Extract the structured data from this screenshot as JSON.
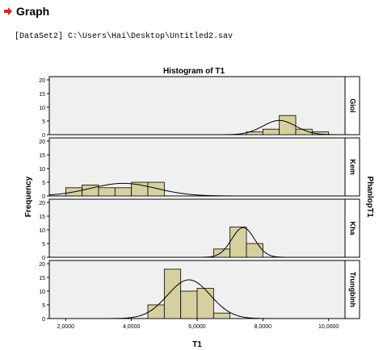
{
  "header": {
    "title": "Graph",
    "arrow_icon": "red-arrow-icon"
  },
  "dataset_line": "[DataSet2] C:\\Users\\Hai\\Desktop\\Untitled2.sav",
  "chart_data": {
    "type": "bar",
    "title": "Histogram of T1",
    "xlabel": "T1",
    "ylabel": "Frequency",
    "panel_variable": "PhanlopT1",
    "xlim": [
      1.5,
      10.5
    ],
    "ylim": [
      0,
      20
    ],
    "x_ticks": [
      2,
      4,
      6,
      8,
      10
    ],
    "x_tick_labels": [
      "2,0000",
      "4,0000",
      "6,0000",
      "8,0000",
      "10,0000"
    ],
    "y_ticks": [
      0,
      5,
      10,
      15,
      20
    ],
    "y_tick_labels": [
      "0",
      "5",
      "10",
      "15",
      "20"
    ],
    "bar_width": 0.5,
    "bar_color": "#d6d0a0",
    "panel_bg": "#f0f0f0",
    "panels": [
      {
        "name": "Gioi",
        "bins": [
          [
            7.5,
            1
          ],
          [
            8.0,
            2
          ],
          [
            8.5,
            7
          ],
          [
            9.0,
            2
          ],
          [
            9.5,
            1
          ]
        ],
        "normal": {
          "mean": 8.5,
          "sd": 0.5,
          "n": 13
        }
      },
      {
        "name": "Kem",
        "bins": [
          [
            2.0,
            3
          ],
          [
            2.5,
            4
          ],
          [
            3.0,
            3
          ],
          [
            3.5,
            3
          ],
          [
            4.0,
            5
          ],
          [
            4.5,
            5
          ]
        ],
        "normal": {
          "mean": 3.75,
          "sd": 1.0,
          "n": 23
        }
      },
      {
        "name": "Kha",
        "bins": [
          [
            6.5,
            3
          ],
          [
            7.0,
            11
          ],
          [
            7.5,
            5
          ]
        ],
        "normal": {
          "mean": 7.4,
          "sd": 0.35,
          "n": 19
        }
      },
      {
        "name": "Trungbinh",
        "bins": [
          [
            4.5,
            5
          ],
          [
            5.0,
            18
          ],
          [
            5.5,
            10
          ],
          [
            6.0,
            11
          ],
          [
            6.5,
            2
          ]
        ],
        "normal": {
          "mean": 5.75,
          "sd": 0.65,
          "n": 46
        }
      }
    ]
  }
}
